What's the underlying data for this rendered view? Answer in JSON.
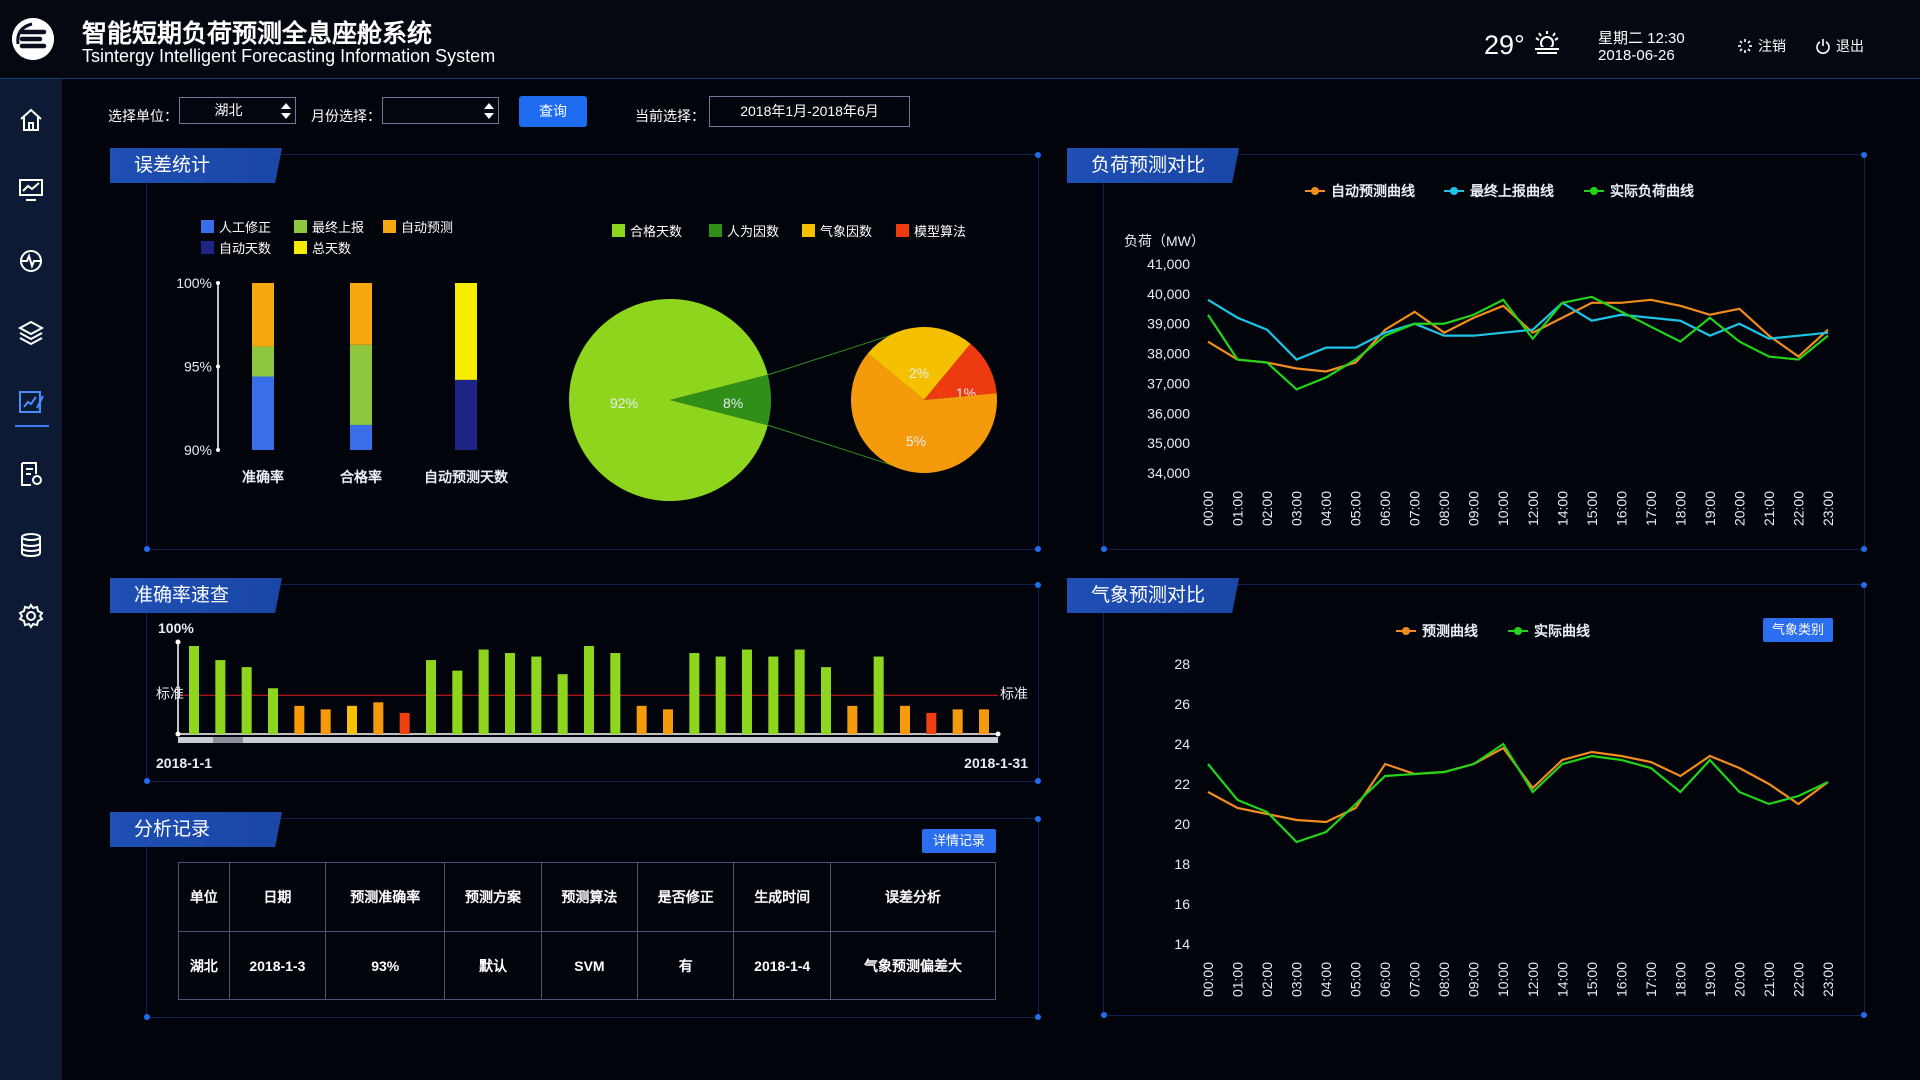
{
  "header": {
    "title_cn": "智能短期负荷预测全息座舱系统",
    "title_en": "Tsintergy Intelligent Forecasting Information System",
    "temperature": "29°",
    "weather_icon": "sun-cloud-icon",
    "weekday_time": "星期二  12:30",
    "date": "2018-06-26",
    "logout_label": "注销",
    "exit_label": "退出"
  },
  "sidebar": {
    "items": [
      {
        "name": "home-icon",
        "active": false
      },
      {
        "name": "monitor-chart-icon",
        "active": false
      },
      {
        "name": "pulse-icon",
        "active": false
      },
      {
        "name": "layers-icon",
        "active": false
      },
      {
        "name": "edit-chart-icon",
        "active": true
      },
      {
        "name": "document-settings-icon",
        "active": false
      },
      {
        "name": "database-icon",
        "active": false
      },
      {
        "name": "gear-icon",
        "active": false
      }
    ]
  },
  "filters": {
    "unit_label": "选择单位：",
    "unit_value": "湖北",
    "month_label": "月份选择：",
    "month_value": "",
    "query_label": "查询",
    "current_label": "当前选择：",
    "current_value": "2018年1月-2018年6月"
  },
  "error_stats": {
    "title": "误差统计",
    "bar_legend": [
      {
        "label": "人工修正",
        "color": "#3a6ee8"
      },
      {
        "label": "最终上报",
        "color": "#8ec63f"
      },
      {
        "label": "自动预测",
        "color": "#f5a70f"
      },
      {
        "label": "自动天数",
        "color": "#1c2585"
      },
      {
        "label": "总天数",
        "color": "#f5ec00"
      }
    ],
    "pie_legend": [
      {
        "label": "合格天数",
        "color": "#8ed61d"
      },
      {
        "label": "人为因数",
        "color": "#2f8f18"
      },
      {
        "label": "气象因数",
        "color": "#f5c000"
      },
      {
        "label": "模型算法",
        "color": "#ee3a10"
      }
    ]
  },
  "chart_data": [
    {
      "type": "bar",
      "name": "error-stats-bars",
      "categories": [
        "准确率",
        "合格率",
        "自动预测天数"
      ],
      "y_ticks": [
        "100%",
        "95%",
        "90%"
      ],
      "ylim": [
        90,
        100
      ],
      "stacks": [
        [
          {
            "color": "#3a6ee8",
            "value": 4.4
          },
          {
            "color": "#8ec63f",
            "value": 1.8
          },
          {
            "color": "#f5a70f",
            "value": 3.8
          }
        ],
        [
          {
            "color": "#3a6ee8",
            "value": 1.5
          },
          {
            "color": "#8ec63f",
            "value": 4.8
          },
          {
            "color": "#f5a70f",
            "value": 3.7
          }
        ],
        [
          {
            "color": "#1c2585",
            "value": 4.2
          },
          {
            "color": "#f5ec00",
            "value": 5.8
          }
        ]
      ]
    },
    {
      "type": "pie",
      "name": "qualified-pie",
      "slices": [
        {
          "label": "92%",
          "value": 92,
          "color": "#8ed61d"
        },
        {
          "label": "8%",
          "value": 8,
          "color": "#2f8f18"
        }
      ]
    },
    {
      "type": "pie",
      "name": "unqualified-breakdown-pie",
      "slices": [
        {
          "label": "2%",
          "value": 2,
          "color": "#f5c000"
        },
        {
          "label": "1%",
          "value": 1,
          "color": "#ee3a10"
        },
        {
          "label": "5%",
          "value": 5,
          "color": "#f59a0a"
        }
      ]
    },
    {
      "type": "line",
      "name": "load-forecast-compare",
      "title": "负荷预测对比",
      "ylabel": "负荷（MW）",
      "ylim": [
        34000,
        41000
      ],
      "y_ticks": [
        "41,000",
        "40,000",
        "39,000",
        "38,000",
        "37,000",
        "36,000",
        "35,000",
        "34,000"
      ],
      "x": [
        "00:00",
        "01:00",
        "02:00",
        "03:00",
        "04:00",
        "05:00",
        "06:00",
        "07:00",
        "08:00",
        "09:00",
        "10:00",
        "12:00",
        "14:00",
        "15:00",
        "16:00",
        "17:00",
        "18:00",
        "19:00",
        "20:00",
        "21:00",
        "22:00",
        "23:00"
      ],
      "series": [
        {
          "name": "自动预测曲线",
          "color": "#f28c1e",
          "values": [
            38400,
            37800,
            37700,
            37500,
            37400,
            37700,
            38800,
            39400,
            38700,
            39200,
            39600,
            38700,
            39200,
            39700,
            39700,
            39800,
            39600,
            39300,
            39500,
            38600,
            37900,
            38800
          ]
        },
        {
          "name": "最终上报曲线",
          "color": "#1ec3e6",
          "values": [
            39800,
            39200,
            38800,
            37800,
            38200,
            38200,
            38700,
            39000,
            38600,
            38600,
            38700,
            38800,
            39700,
            39100,
            39300,
            39200,
            39100,
            38600,
            39000,
            38500,
            38600,
            38700
          ]
        },
        {
          "name": "实际负荷曲线",
          "color": "#22d418",
          "values": [
            39300,
            37800,
            37700,
            36800,
            37200,
            37800,
            38600,
            39000,
            39000,
            39300,
            39800,
            38500,
            39700,
            39900,
            39400,
            38900,
            38400,
            39200,
            38400,
            37900,
            37800,
            38600
          ]
        }
      ]
    },
    {
      "type": "bar",
      "name": "accuracy-quick-check",
      "y_tick": "100%",
      "threshold_label": "标准",
      "x_start": "2018-1-1",
      "x_end": "2018-1-31",
      "values": [
        100,
        96,
        94,
        88,
        83,
        82,
        83,
        84,
        81,
        96,
        93,
        99,
        98,
        97,
        92,
        100,
        98,
        83,
        82,
        98,
        97,
        99,
        97,
        99,
        94,
        83,
        97,
        83,
        81,
        82,
        82
      ],
      "threshold": 86
    },
    {
      "type": "line",
      "name": "weather-forecast-compare",
      "title": "气象预测对比",
      "ylim": [
        14,
        28
      ],
      "y_ticks": [
        "28",
        "26",
        "24",
        "22",
        "20",
        "18",
        "16",
        "14"
      ],
      "x": [
        "00:00",
        "01:00",
        "02:00",
        "03:00",
        "04:00",
        "05:00",
        "06:00",
        "07:00",
        "08:00",
        "09:00",
        "10:00",
        "12:00",
        "14:00",
        "15:00",
        "16:00",
        "17:00",
        "18:00",
        "19:00",
        "20:00",
        "21:00",
        "22:00",
        "23:00"
      ],
      "series": [
        {
          "name": "预测曲线",
          "color": "#f28c1e",
          "values": [
            21.6,
            20.8,
            20.5,
            20.2,
            20.1,
            20.8,
            23.0,
            22.5,
            22.6,
            23.0,
            23.8,
            21.8,
            23.2,
            23.6,
            23.4,
            23.1,
            22.4,
            23.4,
            22.8,
            22.0,
            21.0,
            22.1
          ]
        },
        {
          "name": "实际曲线",
          "color": "#22d418",
          "values": [
            23.0,
            21.2,
            20.6,
            19.1,
            19.6,
            21.0,
            22.4,
            22.5,
            22.6,
            23.0,
            24.0,
            21.6,
            23.0,
            23.4,
            23.2,
            22.8,
            21.6,
            23.2,
            21.6,
            21.0,
            21.4,
            22.1
          ]
        }
      ]
    }
  ],
  "accuracy_panel": {
    "title": "准确率速查"
  },
  "load_panel": {
    "title": "负荷预测对比"
  },
  "weather_panel": {
    "title": "气象预测对比",
    "category_btn": "气象类别"
  },
  "records": {
    "title": "分析记录",
    "detail_btn": "详情记录",
    "headers": [
      "单位",
      "日期",
      "预测准确率",
      "预测方案",
      "预测算法",
      "是否修正",
      "生成时间",
      "误差分析"
    ],
    "rows": [
      [
        "湖北",
        "2018-1-3",
        "93%",
        "默认",
        "SVM",
        "有",
        "2018-1-4",
        "气象预测偏差大"
      ]
    ]
  }
}
